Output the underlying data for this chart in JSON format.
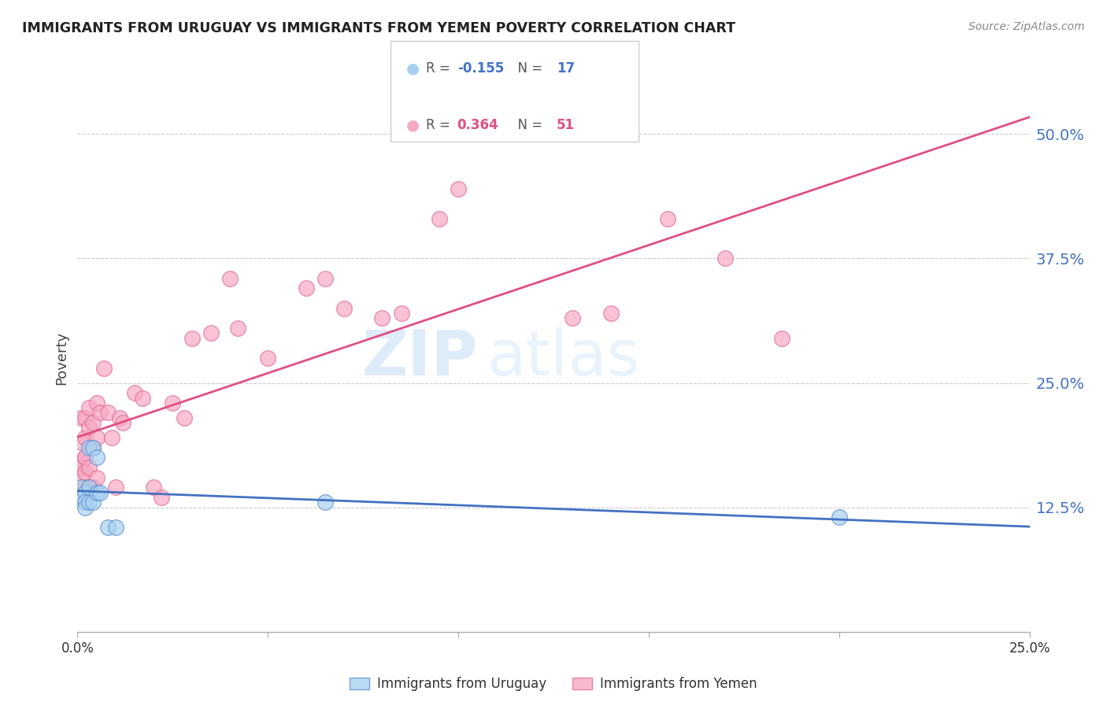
{
  "title": "IMMIGRANTS FROM URUGUAY VS IMMIGRANTS FROM YEMEN POVERTY CORRELATION CHART",
  "source": "Source: ZipAtlas.com",
  "ylabel": "Poverty",
  "ytick_labels": [
    "12.5%",
    "25.0%",
    "37.5%",
    "50.0%"
  ],
  "ytick_values": [
    0.125,
    0.25,
    0.375,
    0.5
  ],
  "xmin": 0.0,
  "xmax": 0.25,
  "ymin": 0.0,
  "ymax": 0.55,
  "legend_r_uruguay": "-0.155",
  "legend_n_uruguay": "17",
  "legend_r_yemen": "0.364",
  "legend_n_yemen": "51",
  "color_uruguay": "#a8d1f0",
  "color_yemen": "#f7a8c4",
  "color_line_uruguay": "#4472c4",
  "color_line_yemen": "#e05080",
  "watermark_text": "ZIP",
  "watermark_text2": "atlas",
  "uruguay_x": [
    0.001,
    0.001,
    0.002,
    0.002,
    0.002,
    0.003,
    0.003,
    0.003,
    0.004,
    0.004,
    0.005,
    0.005,
    0.006,
    0.008,
    0.01,
    0.065,
    0.2
  ],
  "uruguay_y": [
    0.145,
    0.135,
    0.14,
    0.13,
    0.125,
    0.13,
    0.145,
    0.185,
    0.13,
    0.185,
    0.175,
    0.14,
    0.14,
    0.105,
    0.105,
    0.13,
    0.115
  ],
  "yemen_x": [
    0.001,
    0.001,
    0.001,
    0.001,
    0.001,
    0.002,
    0.002,
    0.002,
    0.002,
    0.002,
    0.002,
    0.003,
    0.003,
    0.003,
    0.003,
    0.004,
    0.004,
    0.004,
    0.005,
    0.005,
    0.005,
    0.006,
    0.007,
    0.008,
    0.009,
    0.01,
    0.011,
    0.012,
    0.015,
    0.017,
    0.02,
    0.022,
    0.025,
    0.028,
    0.03,
    0.035,
    0.04,
    0.042,
    0.05,
    0.06,
    0.065,
    0.07,
    0.08,
    0.085,
    0.095,
    0.1,
    0.13,
    0.14,
    0.155,
    0.17,
    0.185
  ],
  "yemen_y": [
    0.155,
    0.165,
    0.17,
    0.19,
    0.215,
    0.145,
    0.16,
    0.175,
    0.195,
    0.215,
    0.175,
    0.145,
    0.165,
    0.205,
    0.225,
    0.145,
    0.185,
    0.21,
    0.155,
    0.195,
    0.23,
    0.22,
    0.265,
    0.22,
    0.195,
    0.145,
    0.215,
    0.21,
    0.24,
    0.235,
    0.145,
    0.135,
    0.23,
    0.215,
    0.295,
    0.3,
    0.355,
    0.305,
    0.275,
    0.345,
    0.355,
    0.325,
    0.315,
    0.32,
    0.415,
    0.445,
    0.315,
    0.32,
    0.415,
    0.375,
    0.295
  ]
}
